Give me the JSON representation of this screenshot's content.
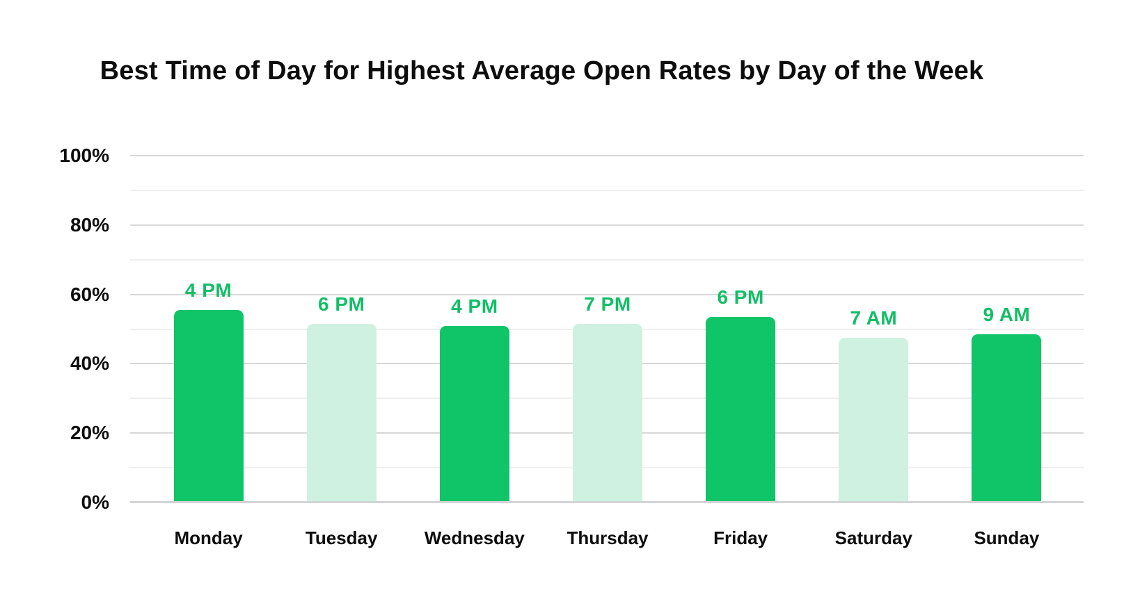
{
  "chart_data": {
    "type": "bar",
    "title": "Best Time of Day for Highest Average Open Rates by Day of the Week",
    "categories": [
      "Monday",
      "Tuesday",
      "Wednesday",
      "Thursday",
      "Friday",
      "Saturday",
      "Sunday"
    ],
    "values": [
      55.5,
      51.5,
      51,
      51.5,
      53.5,
      47.5,
      48.5
    ],
    "bar_labels": [
      "4 PM",
      "6 PM",
      "4 PM",
      "7 PM",
      "6 PM",
      "7 AM",
      "9 AM"
    ],
    "bar_variants": [
      "dark",
      "light",
      "dark",
      "light",
      "dark",
      "light",
      "dark"
    ],
    "xlabel": "",
    "ylabel": "",
    "y_axis": {
      "min": 0,
      "max": 100,
      "minor_step": 10,
      "major_step": 20,
      "labeled_ticks": [
        0,
        20,
        40,
        60,
        80,
        100
      ],
      "tick_suffix": "%"
    },
    "grid": true,
    "legend_position": "none",
    "colors": {
      "bar_dark": "#10C468",
      "bar_light": "#CFF1E1",
      "bar_label_text": "#12BE66",
      "title_text": "#0D0D0D",
      "axis_text": "#0D0D0D",
      "grid_major": "#D8D8D8",
      "grid_minor": "#EFEFEF",
      "axis_baseline": "#D2D4D6",
      "background": "#FFFFFF"
    }
  }
}
